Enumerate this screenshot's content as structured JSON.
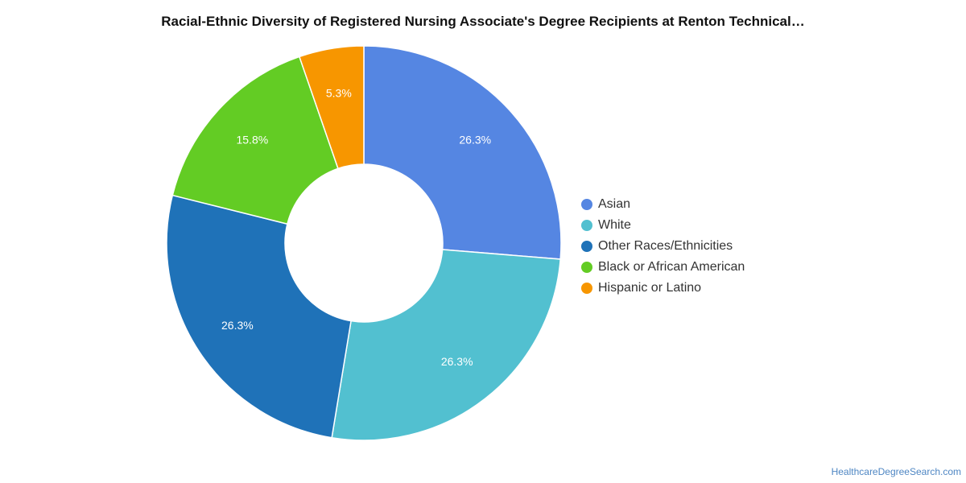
{
  "chart_data": {
    "type": "pie",
    "variant": "donut",
    "title": "Racial-Ethnic Diversity of Registered Nursing Associate's Degree Recipients at Renton Technical…",
    "categories": [
      "Asian",
      "White",
      "Other Races/Ethnicities",
      "Black or African American",
      "Hispanic or Latino"
    ],
    "values": [
      26.3,
      26.3,
      26.3,
      15.8,
      5.3
    ],
    "labels": [
      "26.3%",
      "26.3%",
      "26.3%",
      "15.8%",
      "5.3%"
    ],
    "colors": [
      "#5586e2",
      "#52c0d0",
      "#1f72b8",
      "#63cc24",
      "#f79600"
    ],
    "legend_position": "right"
  },
  "footer": {
    "source": "HealthcareDegreeSearch.com"
  }
}
